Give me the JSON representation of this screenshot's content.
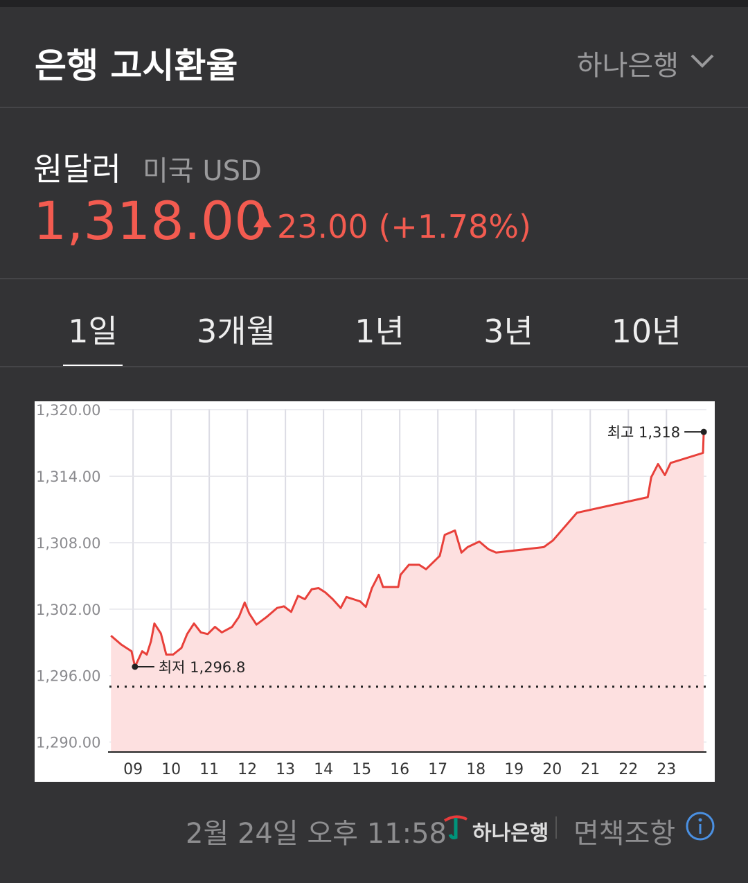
{
  "header": {
    "title": "은행 고시환율",
    "bank": "하나은행"
  },
  "quote": {
    "name": "원달러",
    "country": "미국 USD",
    "price": "1,318.00",
    "change": "23.00",
    "change_percent": "(+1.78%)"
  },
  "tabs": [
    "1일",
    "3개월",
    "1년",
    "3년",
    "10년"
  ],
  "chart_data": {
    "type": "line",
    "x": [
      8.42,
      8.69,
      8.96,
      9.05,
      9.24,
      9.36,
      9.47,
      9.56,
      9.73,
      9.87,
      10.05,
      10.27,
      10.42,
      10.6,
      10.78,
      10.96,
      11.15,
      11.33,
      11.6,
      11.78,
      11.93,
      12.05,
      12.24,
      12.51,
      12.78,
      12.96,
      13.15,
      13.33,
      13.51,
      13.69,
      13.87,
      14.05,
      14.24,
      14.45,
      14.6,
      14.78,
      14.96,
      15.11,
      15.27,
      15.45,
      15.56,
      15.96,
      16.02,
      16.24,
      16.51,
      16.69,
      17.05,
      17.18,
      17.45,
      17.62,
      17.78,
      18.09,
      18.33,
      18.53,
      19.78,
      20.02,
      20.65,
      22.51,
      22.6,
      22.78,
      22.96,
      23.11,
      23.96,
      23.98
    ],
    "series": [
      {
        "color": "#e8403a",
        "fill": "#fde0e0",
        "values": [
          1299.6,
          1298.8,
          1298.2,
          1296.8,
          1298.2,
          1297.9,
          1299.1,
          1300.7,
          1299.8,
          1297.9,
          1297.9,
          1298.5,
          1299.75,
          1300.7,
          1299.9,
          1299.75,
          1300.4,
          1299.9,
          1300.4,
          1301.3,
          1302.6,
          1301.6,
          1300.6,
          1301.3,
          1302.1,
          1302.25,
          1301.75,
          1303.2,
          1302.9,
          1303.8,
          1303.9,
          1303.5,
          1302.9,
          1302.1,
          1303.1,
          1302.9,
          1302.7,
          1302.2,
          1303.9,
          1305.1,
          1304.0,
          1304.0,
          1305.1,
          1306.0,
          1306.0,
          1305.6,
          1306.8,
          1308.7,
          1309.1,
          1307.1,
          1307.6,
          1308.1,
          1307.4,
          1307.1,
          1307.6,
          1308.2,
          1310.7,
          1312.1,
          1313.9,
          1315.1,
          1314.1,
          1315.2,
          1316.1,
          1318.0
        ]
      }
    ],
    "xlim": [
      8.38,
      24.05
    ],
    "xticks": [
      {
        "value": 9,
        "label": "09"
      },
      10,
      11,
      12,
      13,
      14,
      15,
      16,
      17,
      18,
      19,
      20,
      21,
      22,
      23
    ],
    "ylim": [
      1289.1,
      1320.7
    ],
    "yticks": [
      {
        "value": 1290,
        "label": "1,290.00"
      },
      {
        "value": 1296,
        "label": "1,296.00"
      },
      {
        "value": 1302,
        "label": "1,302.00"
      },
      {
        "value": 1308,
        "label": "1,308.00"
      },
      {
        "value": 1314,
        "label": "1,314.00"
      },
      {
        "value": 1320,
        "label": "1,320.00"
      }
    ],
    "grid": true,
    "reference_line": 1295,
    "annotations": [
      {
        "text": "최저 1,296.8",
        "x": 9.05,
        "y": 1296.8,
        "side": "right"
      },
      {
        "text": "최고 1,318",
        "x": 23.98,
        "y": 1318,
        "side": "left"
      }
    ]
  },
  "footer": {
    "timestamp": "2월 24일 오후 11:58",
    "source": "하나은행",
    "disclaimer": "면책조항"
  }
}
